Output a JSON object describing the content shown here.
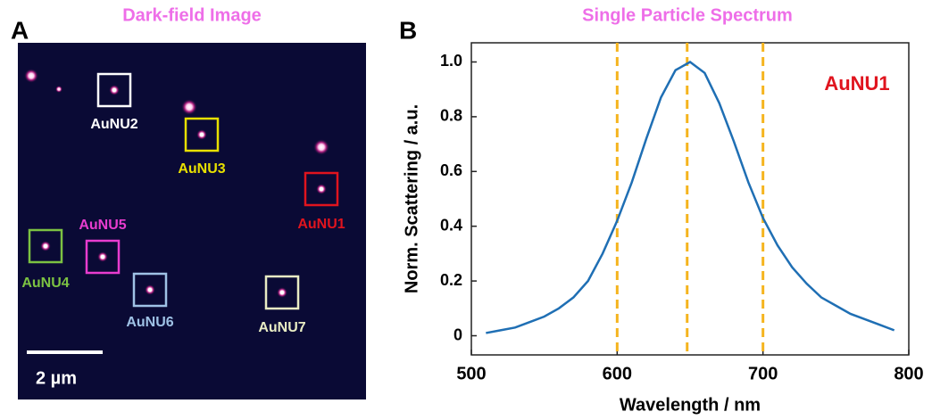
{
  "panel_a": {
    "letter": "A",
    "title": "Dark-field Image",
    "scale_bar": "2 µm",
    "particles": [
      {
        "label": "AuNU1",
        "color": "#e0141e"
      },
      {
        "label": "AuNU2",
        "color": "#ffffff"
      },
      {
        "label": "AuNU3",
        "color": "#e8e000"
      },
      {
        "label": "AuNU4",
        "color": "#7cc242"
      },
      {
        "label": "AuNU5",
        "color": "#e83ccf"
      },
      {
        "label": "AuNU6",
        "color": "#9fc2e6"
      },
      {
        "label": "AuNU7",
        "color": "#e8ecc4"
      }
    ]
  },
  "chart_data": {
    "type": "line",
    "letter": "B",
    "title": "Single Particle Spectrum",
    "x_label": "Wavelength / nm",
    "y_label": "Norm. Scattering / a.u.",
    "annotation": "AuNU1",
    "x": [
      510,
      520,
      530,
      540,
      550,
      560,
      570,
      580,
      590,
      600,
      610,
      620,
      630,
      640,
      650,
      660,
      670,
      680,
      690,
      700,
      710,
      720,
      730,
      740,
      750,
      760,
      770,
      780,
      790
    ],
    "series": [
      {
        "name": "AuNU1",
        "color": "#1f6fb4",
        "values": [
          0.01,
          0.02,
          0.03,
          0.05,
          0.07,
          0.1,
          0.14,
          0.2,
          0.3,
          0.42,
          0.56,
          0.72,
          0.87,
          0.97,
          1.0,
          0.96,
          0.85,
          0.71,
          0.56,
          0.43,
          0.33,
          0.25,
          0.19,
          0.14,
          0.11,
          0.08,
          0.06,
          0.04,
          0.02
        ]
      }
    ],
    "vlines": [
      600,
      648,
      700
    ],
    "vline_color": "#f5b41e",
    "xlim": [
      500,
      800
    ],
    "xticks": [
      500,
      600,
      700,
      800
    ],
    "ylim": [
      -0.07,
      1.07
    ],
    "yticks": [
      0,
      0.2,
      0.4,
      0.6,
      0.8,
      {
        "value": 1.0,
        "label": "1.0"
      }
    ]
  }
}
